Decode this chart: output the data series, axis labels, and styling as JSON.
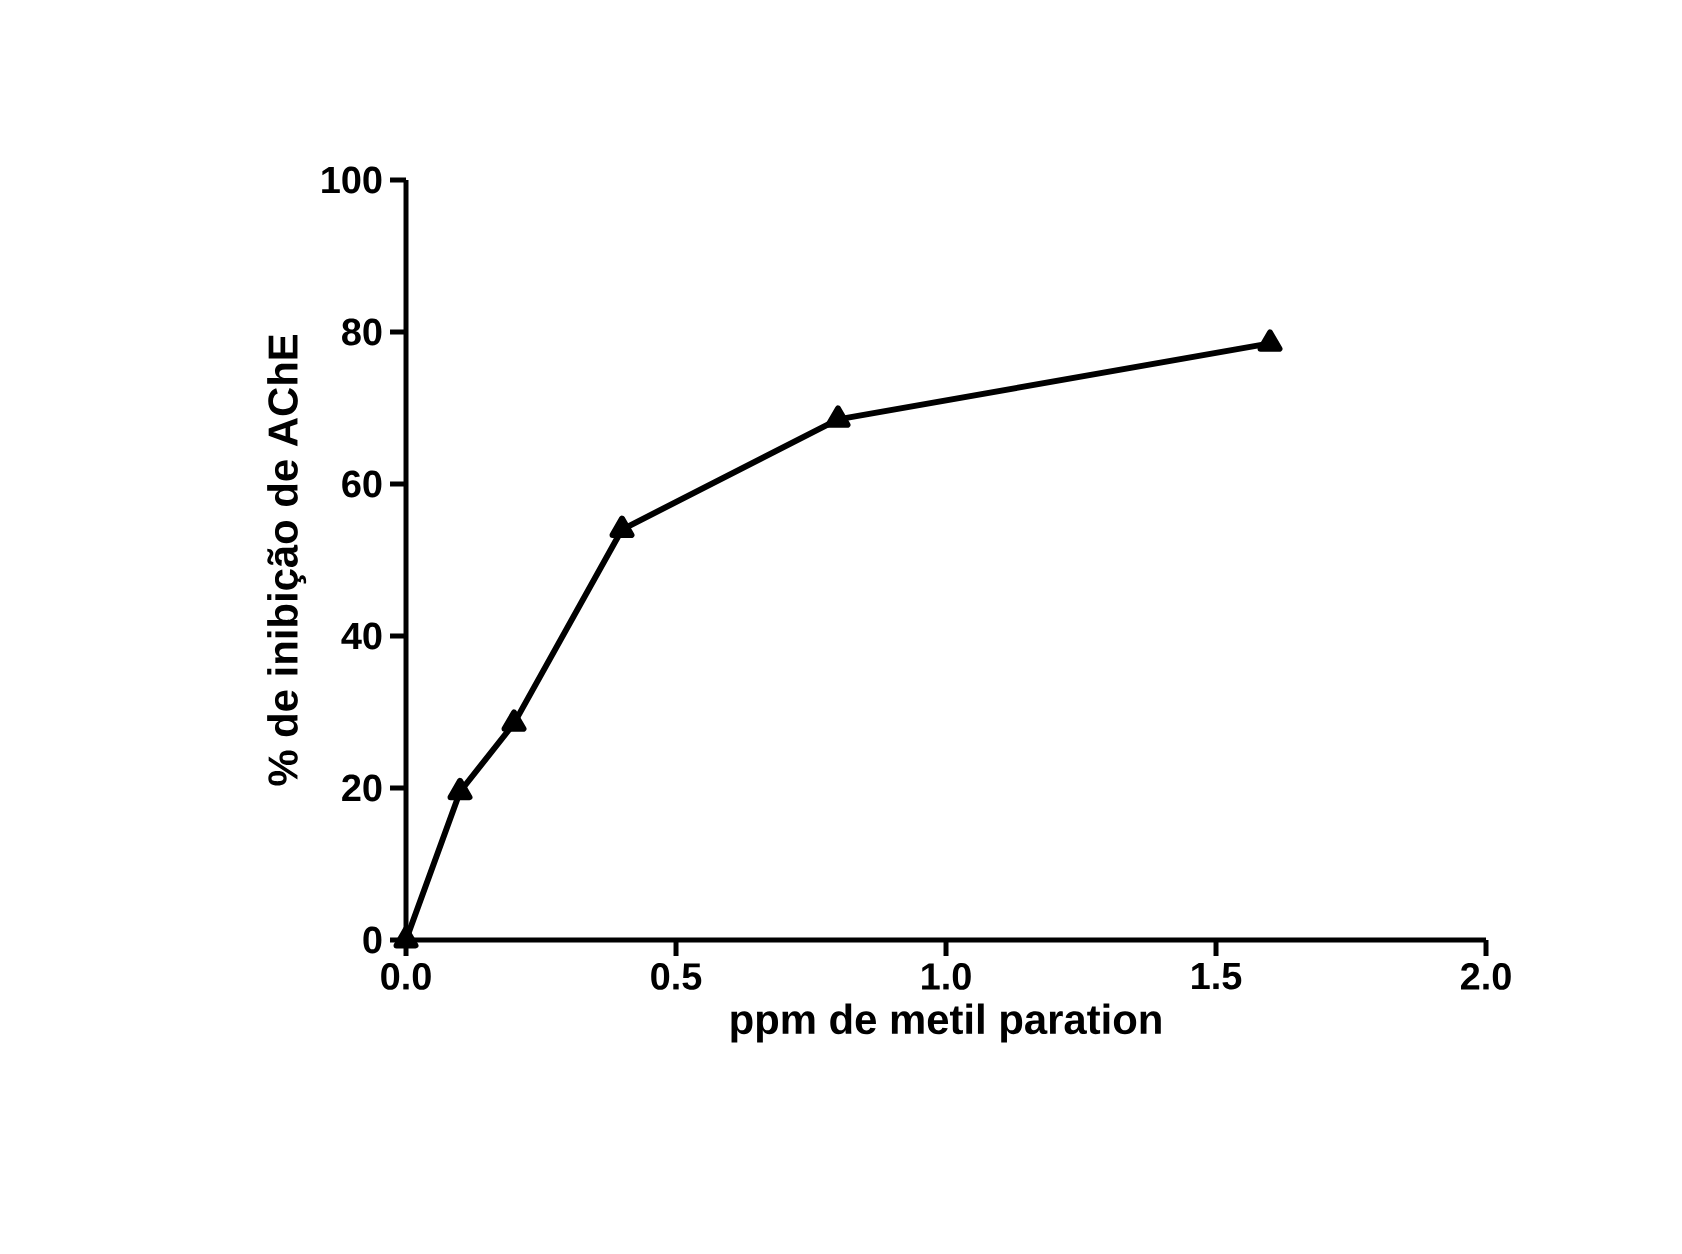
{
  "chart_data": {
    "type": "line",
    "xlabel": "ppm de metil paration",
    "ylabel": "% de inibição de AChE",
    "x": [
      0,
      0.1,
      0.2,
      0.4,
      0.8,
      1.6
    ],
    "series": [
      {
        "color": "#000000",
        "values": [
          0,
          19.5,
          28.5,
          54,
          68.5,
          78.5
        ]
      }
    ],
    "xlim": [
      0,
      2.0
    ],
    "ylim": [
      0,
      100
    ],
    "xticks": [
      {
        "value": 0,
        "label": "0.0"
      },
      {
        "value": 0.5,
        "label": "0.5"
      },
      {
        "value": 1.0,
        "label": "1.0"
      },
      {
        "value": 1.5,
        "label": "1.5"
      },
      {
        "value": 2.0,
        "label": "2.0"
      }
    ],
    "yticks": [
      0,
      20,
      40,
      60,
      80,
      100
    ],
    "marker": "triangle",
    "line_style": "solid",
    "grid": false
  }
}
